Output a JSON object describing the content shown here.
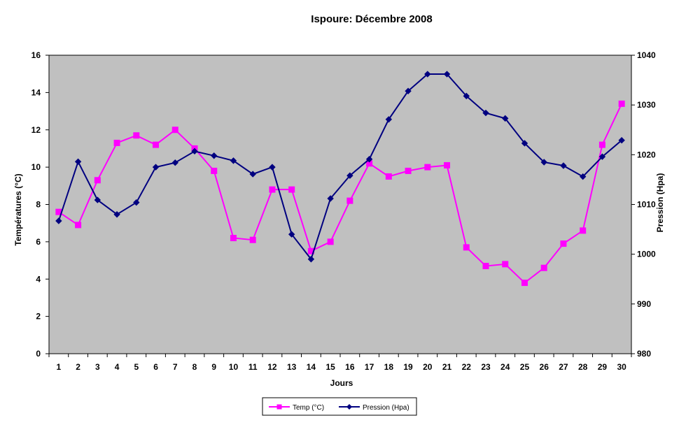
{
  "chart_data": {
    "type": "line",
    "title": "Ispoure: Décembre 2008",
    "xlabel": "Jours",
    "ylabel_left": "Températures (°C)",
    "ylabel_right": "Pression (Hpa)",
    "categories": [
      "1",
      "2",
      "3",
      "4",
      "5",
      "6",
      "7",
      "8",
      "9",
      "10",
      "11",
      "12",
      "13",
      "14",
      "15",
      "16",
      "17",
      "18",
      "19",
      "20",
      "21",
      "22",
      "23",
      "24",
      "25",
      "26",
      "27",
      "28",
      "29",
      "30"
    ],
    "left_ylim": [
      0,
      16
    ],
    "left_ticks": [
      "0",
      "2",
      "4",
      "6",
      "8",
      "10",
      "12",
      "14",
      "16"
    ],
    "right_ylim": [
      980,
      1040
    ],
    "right_ticks": [
      "980",
      "990",
      "1000",
      "1010",
      "1020",
      "1030",
      "1040"
    ],
    "grid": false,
    "plot_background": "#c0c0c0",
    "legend_position": "bottom",
    "series": [
      {
        "name": "Temp (°C)",
        "axis": "left",
        "color": "#ff00ff",
        "marker": "square",
        "values": [
          7.6,
          6.9,
          9.3,
          11.3,
          11.7,
          11.2,
          12.0,
          11.0,
          9.8,
          6.2,
          6.1,
          8.8,
          8.8,
          5.5,
          6.0,
          8.2,
          10.2,
          9.5,
          9.8,
          10.0,
          10.1,
          5.7,
          4.7,
          4.8,
          3.8,
          4.6,
          5.9,
          6.6,
          11.2,
          13.4
        ]
      },
      {
        "name": "Pression (Hpa)",
        "axis": "right",
        "color": "#000080",
        "marker": "diamond",
        "values": [
          1006.7,
          1018.6,
          1010.9,
          1008.0,
          1010.4,
          1017.5,
          1018.4,
          1020.7,
          1019.8,
          1018.8,
          1016.1,
          1017.5,
          1004.0,
          999.0,
          1011.2,
          1015.8,
          1019.1,
          1027.1,
          1032.8,
          1036.2,
          1036.2,
          1031.8,
          1028.4,
          1027.3,
          1022.3,
          1018.5,
          1017.8,
          1015.6,
          1019.6,
          1022.9
        ]
      }
    ]
  }
}
